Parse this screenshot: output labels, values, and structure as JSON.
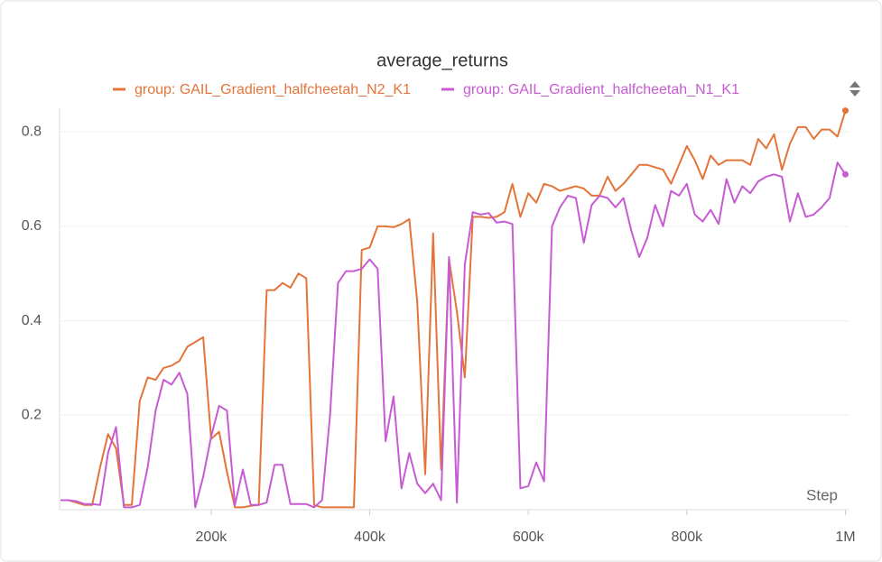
{
  "chart_data": {
    "type": "line",
    "title": "average_returns",
    "x_label": "Step",
    "x": [
      10000,
      20000,
      30000,
      40000,
      50000,
      60000,
      70000,
      80000,
      90000,
      100000,
      110000,
      120000,
      130000,
      140000,
      150000,
      160000,
      170000,
      180000,
      190000,
      200000,
      210000,
      220000,
      230000,
      240000,
      250000,
      260000,
      270000,
      280000,
      290000,
      300000,
      310000,
      320000,
      330000,
      340000,
      350000,
      360000,
      370000,
      380000,
      390000,
      400000,
      410000,
      420000,
      430000,
      440000,
      450000,
      460000,
      470000,
      480000,
      490000,
      500000,
      510000,
      520000,
      530000,
      540000,
      550000,
      560000,
      570000,
      580000,
      590000,
      600000,
      610000,
      620000,
      630000,
      640000,
      650000,
      660000,
      670000,
      680000,
      690000,
      700000,
      710000,
      720000,
      730000,
      740000,
      750000,
      760000,
      770000,
      780000,
      790000,
      800000,
      810000,
      820000,
      830000,
      840000,
      850000,
      860000,
      870000,
      880000,
      890000,
      900000,
      910000,
      920000,
      930000,
      940000,
      950000,
      960000,
      970000,
      980000,
      990000,
      1000000
    ],
    "series": [
      {
        "name": "group: GAIL_Gradient_halfcheetah_N2_K1",
        "color": "#e3743a",
        "values": [
          0.02,
          0.02,
          0.015,
          0.01,
          0.01,
          0.09,
          0.16,
          0.13,
          0.01,
          0.01,
          0.23,
          0.28,
          0.275,
          0.3,
          0.305,
          0.315,
          0.345,
          0.355,
          0.365,
          0.15,
          0.165,
          0.08,
          0.005,
          0.005,
          0.008,
          0.01,
          0.465,
          0.465,
          0.48,
          0.47,
          0.5,
          0.49,
          0.01,
          0.005,
          0.005,
          0.005,
          0.005,
          0.005,
          0.55,
          0.555,
          0.6,
          0.6,
          0.598,
          0.605,
          0.615,
          0.44,
          0.075,
          0.585,
          0.085,
          0.53,
          0.42,
          0.28,
          0.62,
          0.62,
          0.618,
          0.62,
          0.63,
          0.69,
          0.62,
          0.67,
          0.65,
          0.69,
          0.685,
          0.675,
          0.68,
          0.685,
          0.68,
          0.665,
          0.665,
          0.705,
          0.675,
          0.69,
          0.71,
          0.73,
          0.73,
          0.725,
          0.72,
          0.69,
          0.73,
          0.77,
          0.74,
          0.7,
          0.75,
          0.73,
          0.74,
          0.74,
          0.74,
          0.73,
          0.785,
          0.765,
          0.795,
          0.72,
          0.775,
          0.81,
          0.81,
          0.785,
          0.805,
          0.805,
          0.79,
          0.845
        ]
      },
      {
        "name": "group: GAIL_Gradient_halfcheetah_N1_K1",
        "color": "#c65bd3",
        "values": [
          0.02,
          0.02,
          0.018,
          0.012,
          0.012,
          0.01,
          0.12,
          0.175,
          0.005,
          0.005,
          0.01,
          0.09,
          0.21,
          0.275,
          0.265,
          0.29,
          0.245,
          0.005,
          0.07,
          0.155,
          0.22,
          0.21,
          0.01,
          0.085,
          0.01,
          0.01,
          0.015,
          0.095,
          0.095,
          0.012,
          0.012,
          0.012,
          0.005,
          0.02,
          0.2,
          0.48,
          0.505,
          0.505,
          0.51,
          0.53,
          0.51,
          0.145,
          0.24,
          0.045,
          0.12,
          0.055,
          0.035,
          0.055,
          0.02,
          0.535,
          0.015,
          0.52,
          0.63,
          0.625,
          0.628,
          0.608,
          0.61,
          0.605,
          0.045,
          0.05,
          0.1,
          0.06,
          0.6,
          0.64,
          0.665,
          0.66,
          0.565,
          0.645,
          0.665,
          0.66,
          0.64,
          0.66,
          0.59,
          0.535,
          0.575,
          0.645,
          0.6,
          0.675,
          0.665,
          0.69,
          0.625,
          0.61,
          0.635,
          0.605,
          0.7,
          0.65,
          0.685,
          0.67,
          0.695,
          0.705,
          0.71,
          0.705,
          0.61,
          0.67,
          0.62,
          0.625,
          0.64,
          0.66,
          0.735,
          0.71
        ]
      }
    ],
    "xlim": [
      10000,
      1004000
    ],
    "ylim": [
      0,
      0.85
    ],
    "xticks": [
      {
        "value": 200000,
        "label": "200k"
      },
      {
        "value": 400000,
        "label": "400k"
      },
      {
        "value": 600000,
        "label": "600k"
      },
      {
        "value": 800000,
        "label": "800k"
      },
      {
        "value": 1000000,
        "label": "1M"
      }
    ],
    "yticks": [
      0.2,
      0.4,
      0.6,
      0.8
    ],
    "grid": true
  }
}
